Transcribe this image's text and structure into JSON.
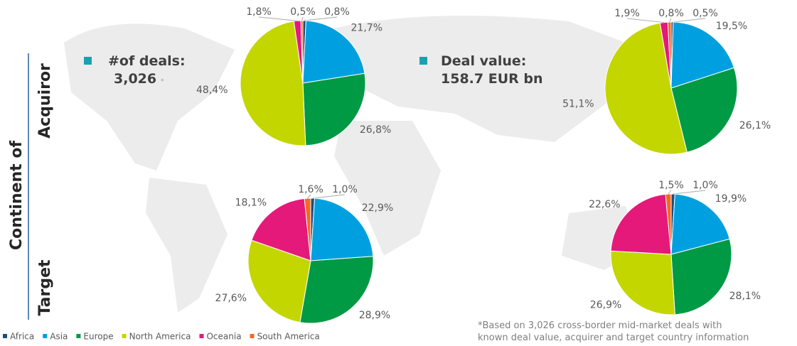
{
  "chart_data": [
    {
      "type": "pie",
      "values": [
        0.8,
        21.7,
        26.8,
        48.4,
        1.8,
        0.5
      ],
      "value_labels": [
        "0,8%",
        "21,7%",
        "26,8%",
        "48,4%",
        "1,8%",
        "0,5%"
      ]
    },
    {
      "type": "pie",
      "values": [
        0.5,
        19.5,
        26.1,
        51.1,
        1.9,
        0.8
      ],
      "value_labels": [
        "0,5%",
        "19,5%",
        "26,1%",
        "51,1%",
        "1,9%",
        "0,8%"
      ]
    },
    {
      "type": "pie",
      "values": [
        1.0,
        22.9,
        28.9,
        27.6,
        18.1,
        1.6
      ],
      "value_labels": [
        "1,0%",
        "22,9%",
        "28,9%",
        "27,6%",
        "18,1%",
        "1,6%"
      ]
    },
    {
      "type": "pie",
      "values": [
        1.0,
        19.9,
        28.1,
        26.9,
        22.6,
        1.5
      ],
      "value_labels": [
        "1,0%",
        "19,9%",
        "28,1%",
        "26,9%",
        "22,6%",
        "1,5%"
      ]
    }
  ],
  "legend": [
    {
      "name": "Africa",
      "color": "#1f4e79"
    },
    {
      "name": "Asia",
      "color": "#00a0e0"
    },
    {
      "name": "Europe",
      "color": "#009a44"
    },
    {
      "name": "North America",
      "color": "#c4d600"
    },
    {
      "name": "Oceania",
      "color": "#e5197a"
    },
    {
      "name": "South America",
      "color": "#f26a21"
    }
  ],
  "axis_title": "Continent of",
  "rows": [
    "Acquiror",
    "Target"
  ],
  "panels": [
    {
      "label": "#of deals:",
      "value": "3,026",
      "note": "*"
    },
    {
      "label": "Deal value:",
      "value": "158.7 EUR bn",
      "note": "*"
    }
  ],
  "footnote": [
    "*Based on 3,026 cross-border mid-market deals with",
    "known deal value, acquirer and target country information"
  ]
}
